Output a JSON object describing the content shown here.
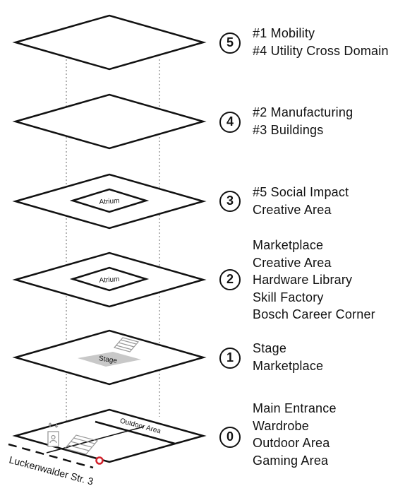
{
  "floors": [
    {
      "number": "5",
      "lines": [
        "#1 Mobility",
        "#4 Utility Cross Domain"
      ]
    },
    {
      "number": "4",
      "lines": [
        "#2 Manufacturing",
        "#3 Buildings"
      ]
    },
    {
      "number": "3",
      "lines": [
        "#5 Social Impact",
        "Creative Area"
      ],
      "inner_label": "Atrium"
    },
    {
      "number": "2",
      "lines": [
        "Marketplace",
        "Creative Area",
        "Hardware Library",
        "Skill Factory",
        "Bosch Career Corner"
      ],
      "inner_label": "Atrium"
    },
    {
      "number": "1",
      "lines": [
        "Stage",
        "Marketplace"
      ],
      "inner_label": "Stage"
    },
    {
      "number": "0",
      "lines": [
        "Main Entrance",
        "Wardrobe",
        "Outdoor Area",
        "Gaming Area"
      ],
      "inner_label": "Outdoor Area"
    }
  ],
  "street_label": "Luckenwalder Str. 3",
  "colors": {
    "line": "#111111",
    "stage_fill": "#c8c8c8",
    "dotted": "#9a9a9a",
    "entrance_marker": "#d3202a"
  }
}
